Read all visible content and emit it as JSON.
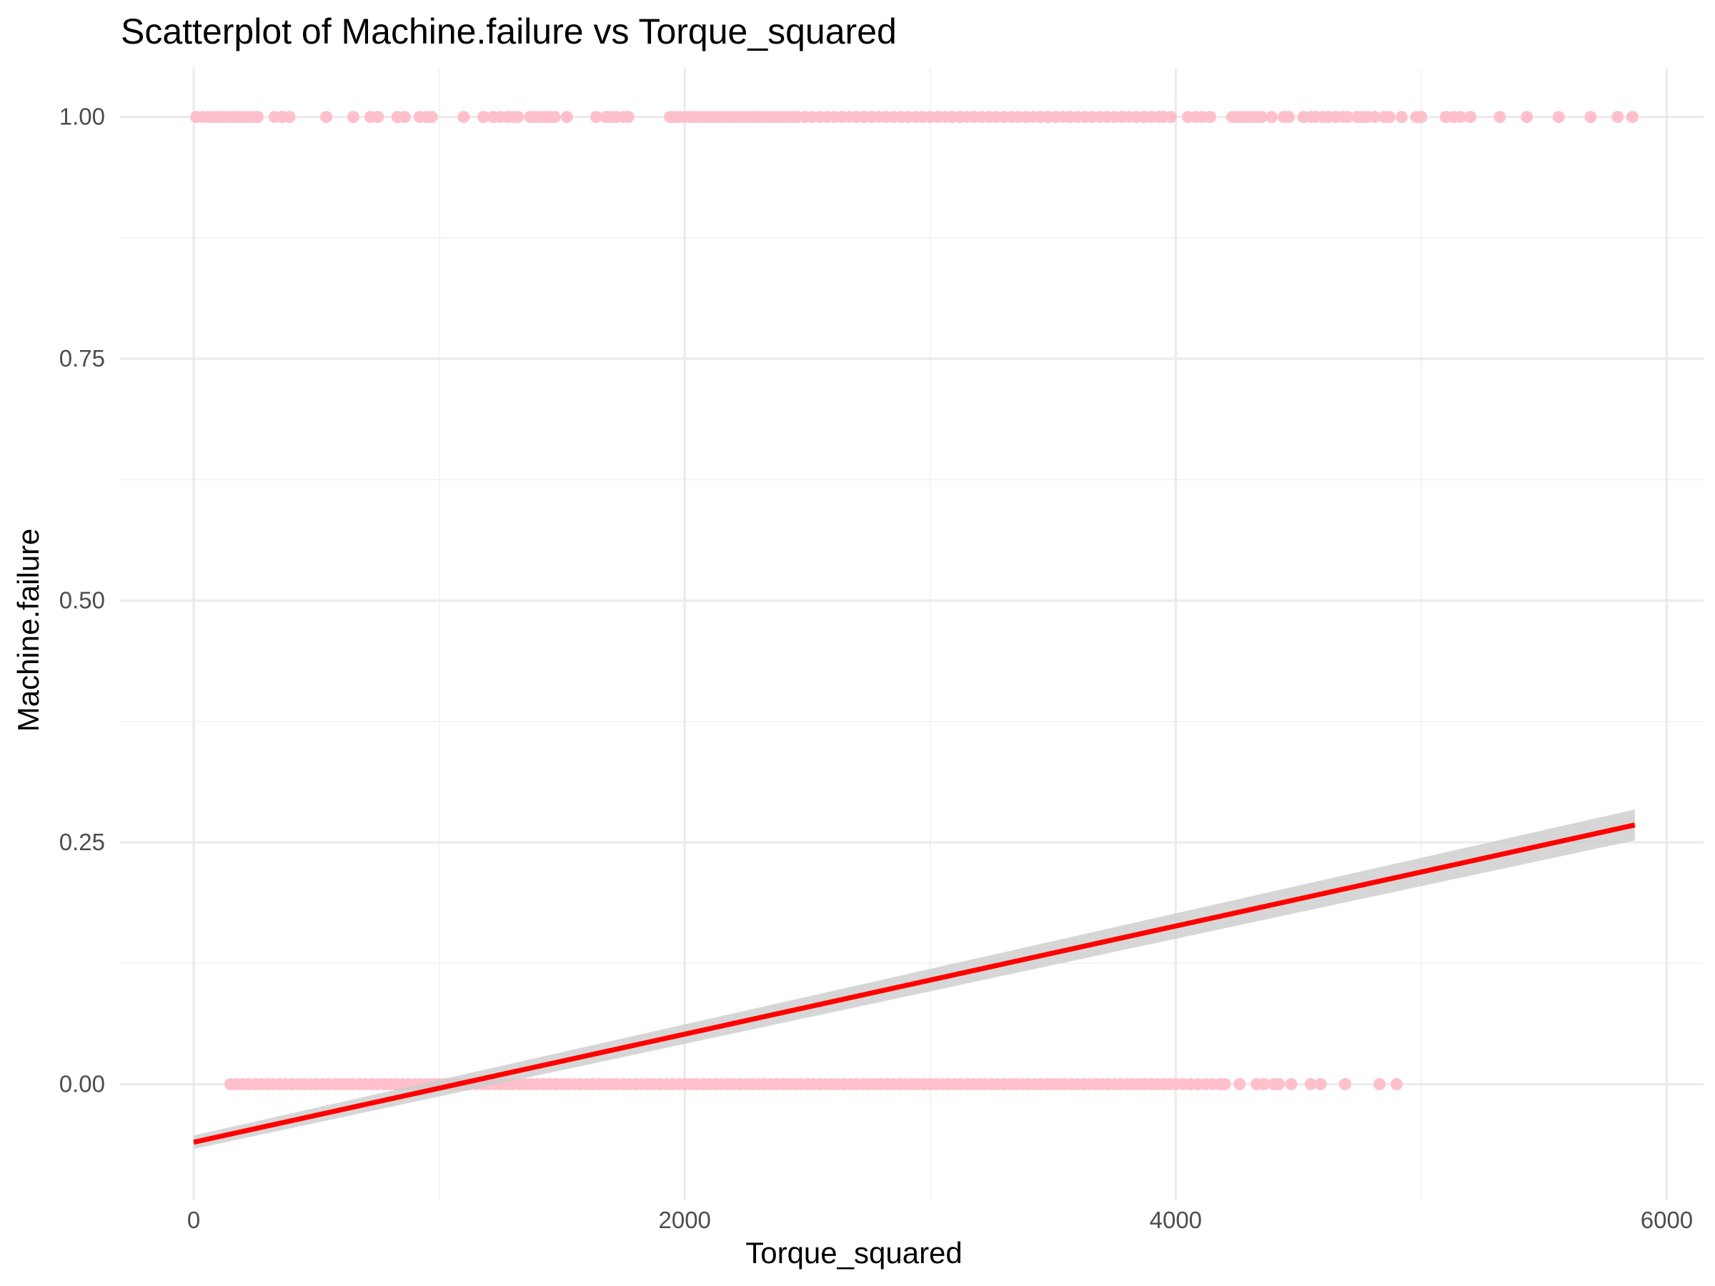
{
  "chart_data": {
    "type": "scatter",
    "title": "Scatterplot of Machine.failure vs Torque_squared",
    "xlabel": "Torque_squared",
    "ylabel": "Machine.failure",
    "xlim": [
      -300,
      6150
    ],
    "ylim": [
      -0.12,
      1.05
    ],
    "x_ticks": [
      0,
      2000,
      4000,
      6000
    ],
    "x_tick_labels": [
      "0",
      "2000",
      "4000",
      "6000"
    ],
    "y_ticks": [
      0,
      0.25,
      0.5,
      0.75,
      1
    ],
    "y_tick_labels": [
      "0.00",
      "0.25",
      "0.50",
      "0.75",
      "1.00"
    ],
    "grid": true,
    "point_color": "#ffc0cb",
    "line_color": "#ff0000",
    "band_color": "#cccccc",
    "series": [
      {
        "y": 1,
        "x": [
          10,
          35,
          60,
          80,
          100,
          120,
          140,
          160,
          180,
          200,
          220,
          240,
          260,
          330,
          360,
          390,
          540,
          650,
          720,
          750,
          830,
          860,
          920,
          950,
          970,
          1100,
          1180,
          1220,
          1250,
          1280,
          1300,
          1320,
          1370,
          1390,
          1410,
          1430,
          1450,
          1470,
          1520,
          1640,
          1680,
          1700,
          1720,
          1750,
          1770,
          1940,
          1960,
          1980,
          2000,
          2020,
          2040,
          2060,
          2080,
          2100,
          2120,
          2140,
          2160,
          2180,
          2200,
          2220,
          2240,
          2260,
          2280,
          2300,
          2320,
          2340,
          2360,
          2380,
          2400,
          2420,
          2440,
          2460,
          2490,
          2520,
          2550,
          2580,
          2610,
          2640,
          2670,
          2700,
          2730,
          2760,
          2790,
          2820,
          2850,
          2880,
          2910,
          2940,
          2970,
          3000,
          3030,
          3060,
          3090,
          3120,
          3150,
          3180,
          3210,
          3240,
          3270,
          3300,
          3330,
          3360,
          3390,
          3420,
          3450,
          3480,
          3510,
          3540,
          3570,
          3600,
          3630,
          3660,
          3690,
          3720,
          3750,
          3780,
          3810,
          3840,
          3870,
          3900,
          3930,
          3950,
          3980,
          4050,
          4080,
          4110,
          4140,
          4230,
          4250,
          4270,
          4290,
          4310,
          4330,
          4350,
          4390,
          4440,
          4460,
          4520,
          4550,
          4570,
          4600,
          4620,
          4650,
          4680,
          4700,
          4740,
          4760,
          4780,
          4810,
          4850,
          4870,
          4920,
          4980,
          5000,
          5100,
          5130,
          5160,
          5200,
          5320,
          5430,
          5560,
          5690,
          5800,
          5860
        ]
      },
      {
        "y": 0,
        "x": [
          150,
          175,
          200,
          225,
          250,
          275,
          300,
          325,
          350,
          375,
          400,
          425,
          450,
          475,
          500,
          525,
          550,
          575,
          600,
          625,
          650,
          675,
          700,
          725,
          750,
          775,
          800,
          825,
          850,
          875,
          900,
          925,
          950,
          975,
          1000,
          1025,
          1050,
          1075,
          1100,
          1125,
          1150,
          1175,
          1200,
          1225,
          1250,
          1275,
          1300,
          1325,
          1350,
          1375,
          1400,
          1425,
          1450,
          1475,
          1500,
          1525,
          1550,
          1575,
          1600,
          1625,
          1650,
          1675,
          1700,
          1725,
          1750,
          1775,
          1800,
          1825,
          1850,
          1875,
          1900,
          1925,
          1950,
          1975,
          2000,
          2025,
          2050,
          2075,
          2100,
          2125,
          2150,
          2175,
          2200,
          2225,
          2250,
          2275,
          2300,
          2325,
          2350,
          2375,
          2400,
          2425,
          2450,
          2475,
          2500,
          2525,
          2550,
          2575,
          2600,
          2625,
          2650,
          2675,
          2700,
          2725,
          2750,
          2775,
          2800,
          2825,
          2850,
          2875,
          2900,
          2925,
          2950,
          2975,
          3000,
          3025,
          3050,
          3075,
          3100,
          3125,
          3150,
          3175,
          3200,
          3225,
          3250,
          3275,
          3300,
          3325,
          3350,
          3375,
          3400,
          3425,
          3450,
          3475,
          3500,
          3525,
          3550,
          3575,
          3600,
          3625,
          3650,
          3675,
          3700,
          3725,
          3750,
          3775,
          3800,
          3825,
          3850,
          3875,
          3900,
          3925,
          3950,
          3975,
          4000,
          4030,
          4060,
          4090,
          4120,
          4150,
          4180,
          4200,
          4260,
          4330,
          4360,
          4400,
          4420,
          4470,
          4550,
          4590,
          4690,
          4830,
          4900
        ]
      }
    ],
    "fit_line": {
      "method": "linear",
      "x": [
        0,
        5870
      ],
      "y": [
        -0.06,
        0.268
      ]
    },
    "confidence_band": {
      "x": [
        0,
        5870
      ],
      "lower": [
        -0.067,
        0.252
      ],
      "upper": [
        -0.053,
        0.284
      ]
    }
  }
}
